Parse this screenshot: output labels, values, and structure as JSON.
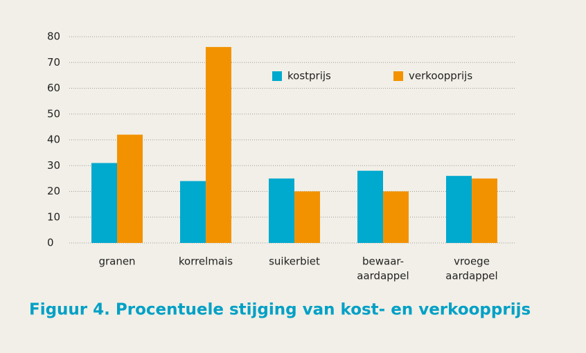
{
  "chart_data": {
    "type": "bar",
    "title": "Figuur 4. Procentuele stijging van kost- en verkoopprijs",
    "categories": [
      [
        "granen"
      ],
      [
        "korrelmais"
      ],
      [
        "suikerbiet"
      ],
      [
        "bewaar-",
        "aardappel"
      ],
      [
        "vroege",
        "aardappel"
      ]
    ],
    "series": [
      {
        "name": "kostprijs",
        "color": "#00a9ce",
        "values": [
          31,
          24,
          25,
          28,
          26
        ]
      },
      {
        "name": "verkoopprijs",
        "color": "#f39200",
        "values": [
          42,
          76,
          20,
          20,
          25
        ]
      }
    ],
    "ylim": [
      0,
      80
    ],
    "yticks": [
      0,
      10,
      20,
      30,
      40,
      50,
      60,
      70,
      80
    ],
    "grid": true,
    "legend": "top"
  }
}
